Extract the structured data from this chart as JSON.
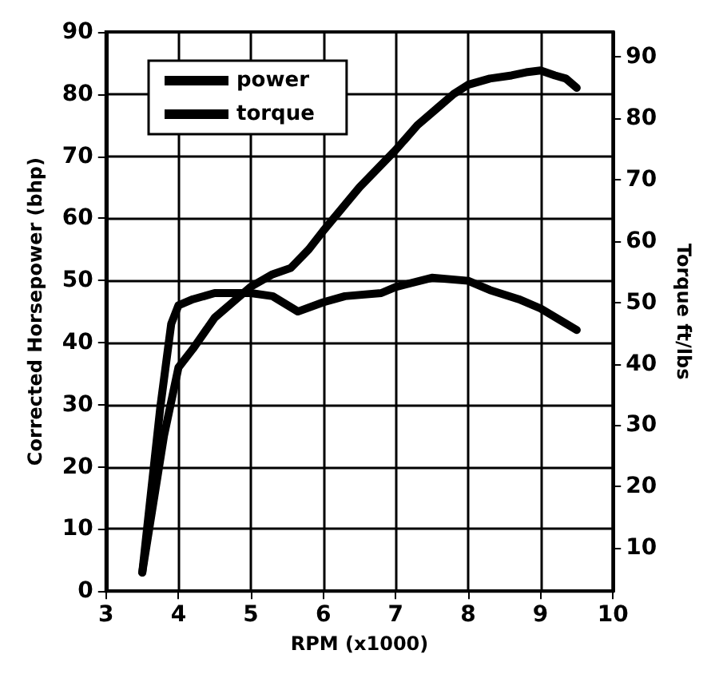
{
  "chart_data": {
    "type": "line",
    "xlabel": "RPM (x1000)",
    "ylabel": "Corrected Horsepower (bhp)",
    "y2label": "Torque ft/lbs",
    "xlim": [
      3,
      10
    ],
    "xticks": [
      3,
      4,
      5,
      6,
      7,
      8,
      9,
      10
    ],
    "ylim": [
      0,
      90
    ],
    "yticks": [
      0,
      10,
      20,
      30,
      40,
      50,
      60,
      70,
      80,
      90
    ],
    "y2lim": [
      3,
      94
    ],
    "y2ticks": [
      10,
      20,
      30,
      40,
      50,
      60,
      70,
      80,
      90
    ],
    "grid": true,
    "legend": "top left",
    "marker": "none",
    "line_style": "solid",
    "series": [
      {
        "name": "power",
        "color": "#000000",
        "x": [
          3.5,
          3.8,
          4.0,
          4.2,
          4.5,
          4.8,
          5.0,
          5.3,
          5.55,
          5.8,
          6.0,
          6.5,
          7.0,
          7.3,
          7.6,
          7.8,
          8.0,
          8.3,
          8.6,
          8.8,
          9.0,
          9.2,
          9.35,
          9.5
        ],
        "values": [
          3,
          25,
          36,
          39,
          44,
          47,
          49,
          51,
          52,
          55,
          58,
          65,
          71,
          75,
          78,
          80,
          81.5,
          82.5,
          83,
          83.5,
          83.8,
          83,
          82.5,
          81
        ]
      },
      {
        "name": "torque",
        "color": "#000000",
        "axis": "y2",
        "x": [
          3.5,
          3.75,
          3.9,
          4.0,
          4.2,
          4.5,
          5.0,
          5.3,
          5.65,
          6.0,
          6.3,
          6.8,
          7.0,
          7.5,
          8.0,
          8.3,
          8.7,
          9.0,
          9.5
        ],
        "values": [
          6,
          33,
          46.5,
          49.5,
          50.5,
          51.5,
          51.5,
          51,
          48.5,
          50,
          51,
          51.5,
          52.5,
          54,
          53.5,
          52,
          50.5,
          49,
          45.5
        ]
      }
    ]
  }
}
